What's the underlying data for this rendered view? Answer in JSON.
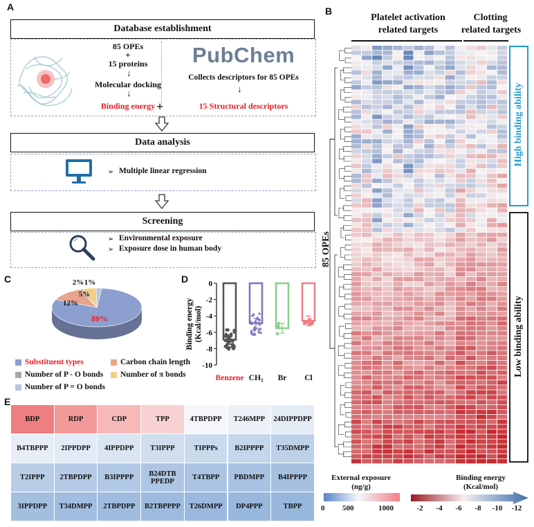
{
  "panels": {
    "A": "A",
    "B": "B",
    "C": "C",
    "D": "D",
    "E": "E"
  },
  "panelA": {
    "db_title": "Database establishment",
    "left_lines": [
      "85 OPEs",
      "+",
      "15 proteins"
    ],
    "docking": "Molecular docking",
    "binding_energy": "Binding energy",
    "plus": "+",
    "pubchem": "PubChem",
    "collects": "Collects descriptors for 85 OPEs",
    "structural": "15 Structural descriptors",
    "analysis_title": "Data analysis",
    "analysis_item": "Multiple linear regression",
    "screening_title": "Screening",
    "screening_items": [
      "Environmental exposure",
      "Exposure dose in human body"
    ],
    "bullet": "➢"
  },
  "panelB": {
    "header_left": [
      "Platelet activation",
      "related targets"
    ],
    "header_right": [
      "Clotting",
      "related targets"
    ],
    "row_label": "85 OPEs",
    "high_label": "High binding ability",
    "low_label": "Low binding ability",
    "exposure_title": [
      "External exposure",
      "(ng/g)"
    ],
    "exposure_ticks": [
      "0",
      "500",
      "1000"
    ],
    "energy_title": [
      "Binding energy",
      "(Kcal/mol)"
    ],
    "energy_ticks": [
      "-2",
      "-4",
      "-6",
      "-8",
      "-10",
      "-12"
    ],
    "colors": {
      "accent": "#1f9ad6",
      "low_box": "#222222"
    }
  },
  "panelC": {
    "legend": [
      {
        "label": "Substituent types",
        "color": "#8c9fcf",
        "highlight": true
      },
      {
        "label": "Carbon chain length",
        "color": "#e8a48a",
        "highlight": false
      },
      {
        "label": "Number of P - O bonds",
        "color": "#a8a8a8",
        "highlight": false
      },
      {
        "label": "Number of π bonds",
        "color": "#f3cf85",
        "highlight": false
      },
      {
        "label": "Number of P = O bonds",
        "color": "#b6c9e2",
        "highlight": false
      }
    ]
  },
  "panelE": {
    "rows": [
      [
        "BDP",
        "RDP",
        "CDP",
        "TPP",
        "4TBPDPP",
        "T246MPP",
        "24DIPPDPP"
      ],
      [
        "B4TBPPP",
        "2IPPDPP",
        "4IPPDPP",
        "T3IPPP",
        "TIPPPs",
        "B2IPPPP",
        "T35DMPP"
      ],
      [
        "T2IPPP",
        "2TBPDPP",
        "B3IPPPP",
        "B24DTB PPEDP",
        "T4TBPP",
        "PBDMPP",
        "B4IPPPP"
      ],
      [
        "3IPPDPP",
        "T34DMPP",
        "2TBPDPP",
        "B2TBPPPP",
        "T26DMPP",
        "DP4PPP",
        "TBPP"
      ]
    ],
    "colors": [
      [
        "#ee7f80",
        "#f29a9a",
        "#f6b8b8",
        "#f8d2d2",
        "#f4f6fb",
        "#ecf1f8",
        "#e4ecf6"
      ],
      [
        "#e8eef7",
        "#e2eaf5",
        "#d9e5f2",
        "#cfdeee",
        "#c9daed",
        "#c4d6eb",
        "#bdd1e8"
      ],
      [
        "#b8cde6",
        "#b5cbe5",
        "#b1c9e4",
        "#aec6e3",
        "#aac4e2",
        "#a8c2e1",
        "#a6c1e0"
      ],
      [
        "#a3bfe0",
        "#a1bddf",
        "#9fbcdf",
        "#9dbbde",
        "#9bb9de",
        "#99b8dd",
        "#97b7dd"
      ]
    ]
  },
  "chart_data": [
    {
      "type": "pie",
      "title": "",
      "labels": [
        "Substituent types",
        "Carbon chain length",
        "Number of P - O bonds",
        "Number of π bonds",
        "Number of P = O bonds"
      ],
      "values": [
        80,
        12,
        1,
        5,
        2
      ],
      "data_labels": [
        "80%",
        "12%",
        "1%",
        "5%",
        "2%"
      ]
    },
    {
      "type": "bar",
      "title": "",
      "xlabel": "",
      "ylabel": "Binding energy (Kcal/mol)",
      "categories": [
        "Benzene",
        "CH₃",
        "Br",
        "Cl"
      ],
      "category_colors": [
        "#555555",
        "#7f78c2",
        "#8bd08b",
        "#ef7f86"
      ],
      "highlight_category": "Benzene",
      "values": [
        -6.9,
        -4.9,
        -5.5,
        -4.6
      ],
      "ylim": [
        -10,
        0
      ],
      "yticks": [
        "0",
        "-2",
        "-4",
        "-6",
        "-8",
        "-10"
      ]
    },
    {
      "type": "heatmap",
      "title": "",
      "rows": 85,
      "columns": 15,
      "row_label": "85 OPEs",
      "column_groups": [
        {
          "label": "Platelet activation related targets",
          "columns": 10
        },
        {
          "label": "Clotting related targets",
          "columns": 5
        }
      ],
      "row_groups": [
        {
          "label": "High binding ability",
          "rows": 38
        },
        {
          "label": "Low binding ability",
          "rows": 47
        }
      ],
      "color_scale": {
        "min": -12,
        "max": -2,
        "unit": "Kcal/mol",
        "low_color": "#4a6fa5",
        "high_color": "#8b0000"
      }
    }
  ]
}
